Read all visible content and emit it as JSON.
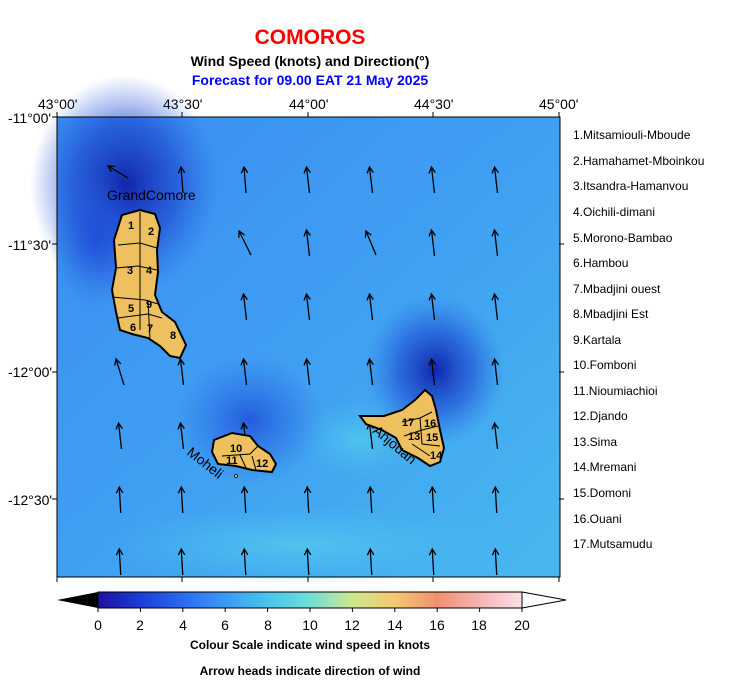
{
  "title": "COMOROS",
  "subtitle": "Wind Speed (knots) and Direction(°)",
  "forecast": "Forecast for  09.00 EAT 21 May 2025",
  "lon_labels": [
    "43°00'",
    "43°30'",
    "44°00'",
    "44°30'",
    "45°00'"
  ],
  "lat_labels": [
    "-11°00'",
    "-11°30'",
    "-12°00'",
    "-12°30'"
  ],
  "regions": [
    "1.Mitsamiouli-Mboude",
    "2.Hamahamet-Mboinkou",
    "3.Itsandra-Hamanvou",
    "4.Oichili-dimani",
    "5.Morono-Bambao",
    "6.Hambou",
    "7.Mbadjini ouest",
    "8.Mbadjini Est",
    "9.Kartala",
    "10.Fomboni",
    "11.Nioumiachioi",
    "12.Djando",
    "13.Sima",
    "14.Mremani",
    "15.Domoni",
    "16.Ouani",
    "17.Mutsamudu"
  ],
  "islands": {
    "grand_comore": "GrandComore",
    "moheli": "Moheli",
    "anjouan": "Anjouan"
  },
  "region_numbers": {
    "gc": [
      "1",
      "2",
      "3",
      "4",
      "5",
      "6",
      "7",
      "8",
      "9"
    ],
    "mo": [
      "10",
      "11",
      "12"
    ],
    "an": [
      "13",
      "14",
      "15",
      "16",
      "17"
    ]
  },
  "colorbar": {
    "ticks": [
      "0",
      "2",
      "4",
      "6",
      "8",
      "10",
      "12",
      "14",
      "16",
      "18",
      "20"
    ],
    "colors": [
      "#1e10a0",
      "#1b3cd8",
      "#2a6af2",
      "#3a9af5",
      "#49c3ee",
      "#6ee0d8",
      "#cfe78e",
      "#f5c870",
      "#f0906e",
      "#f5b4b4",
      "#fde0e8"
    ]
  },
  "footer1": "Colour Scale indicate wind speed in knots",
  "footer2": "Arrow heads indicate direction of wind",
  "colors": {
    "title": "#ff0000",
    "forecast": "#0000ff",
    "land": "#eec060"
  }
}
